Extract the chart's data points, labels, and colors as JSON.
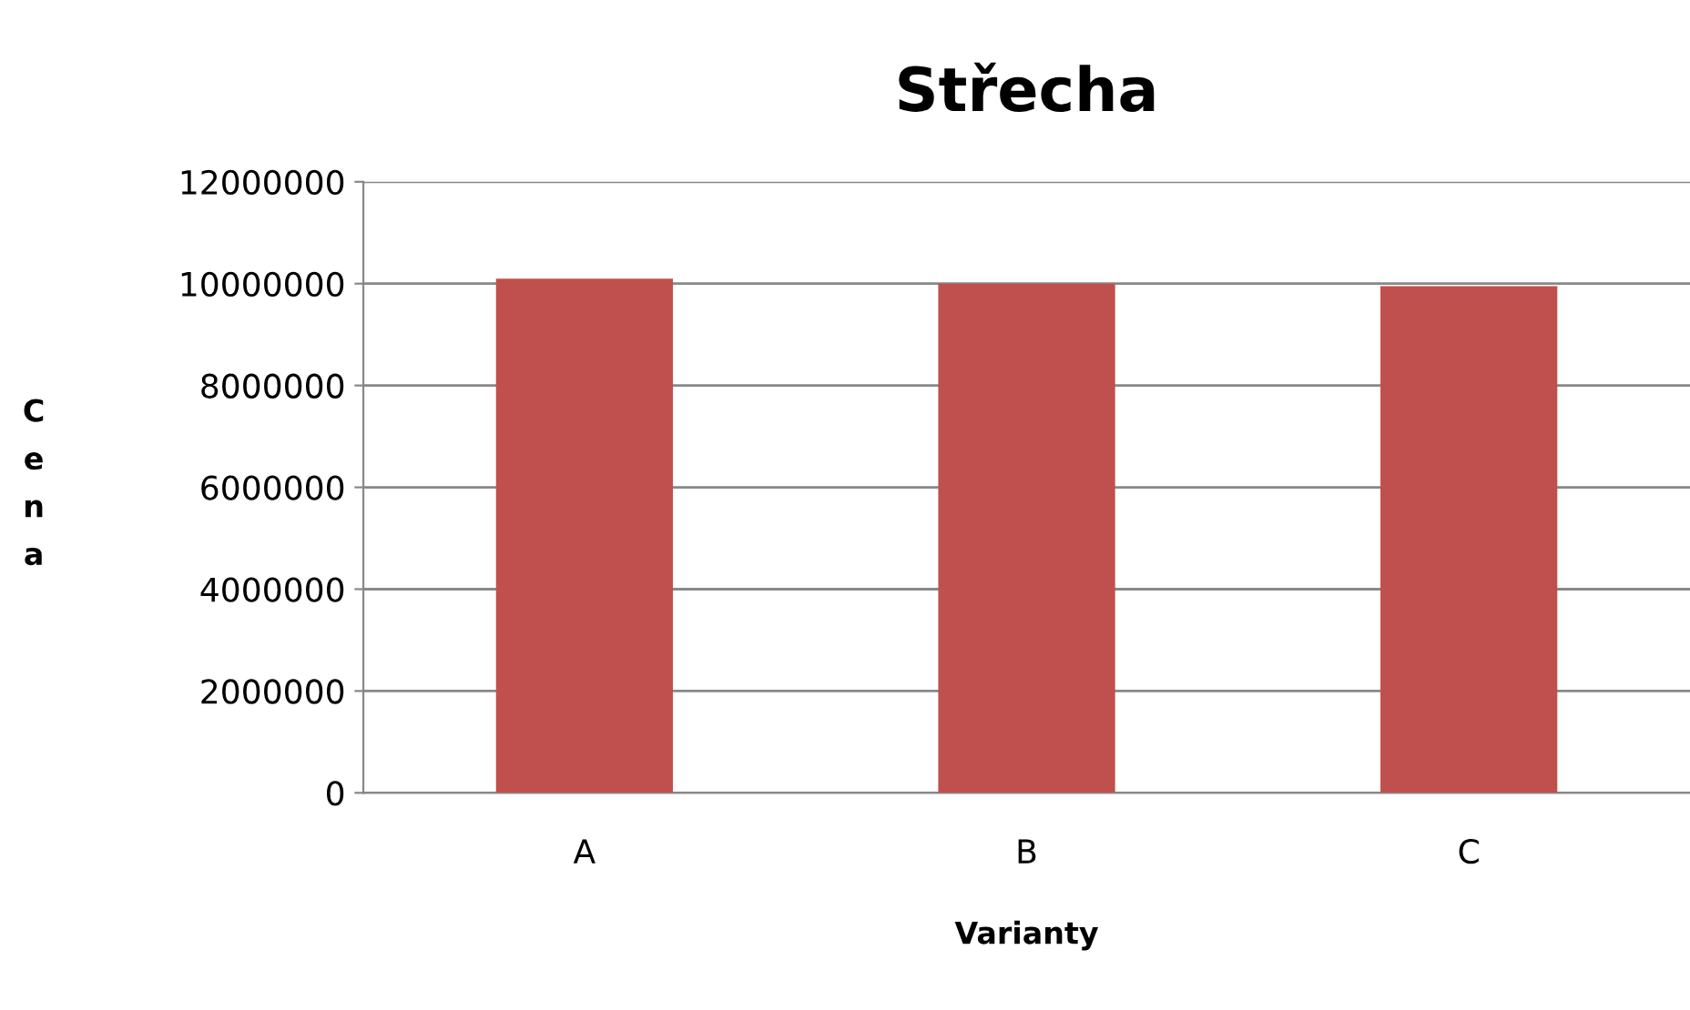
{
  "chart_data": {
    "type": "bar",
    "title": "Střecha",
    "xlabel": "Varianty",
    "ylabel": "Cena",
    "categories": [
      "A",
      "B",
      "C"
    ],
    "series": [
      {
        "color": "#c0504d",
        "values": [
          10100000,
          10000000,
          9950000
        ]
      }
    ],
    "ylim": [
      0,
      12000000
    ],
    "yticks": [
      0,
      2000000,
      4000000,
      6000000,
      8000000,
      10000000,
      12000000
    ],
    "grid": "y",
    "legend": false
  }
}
